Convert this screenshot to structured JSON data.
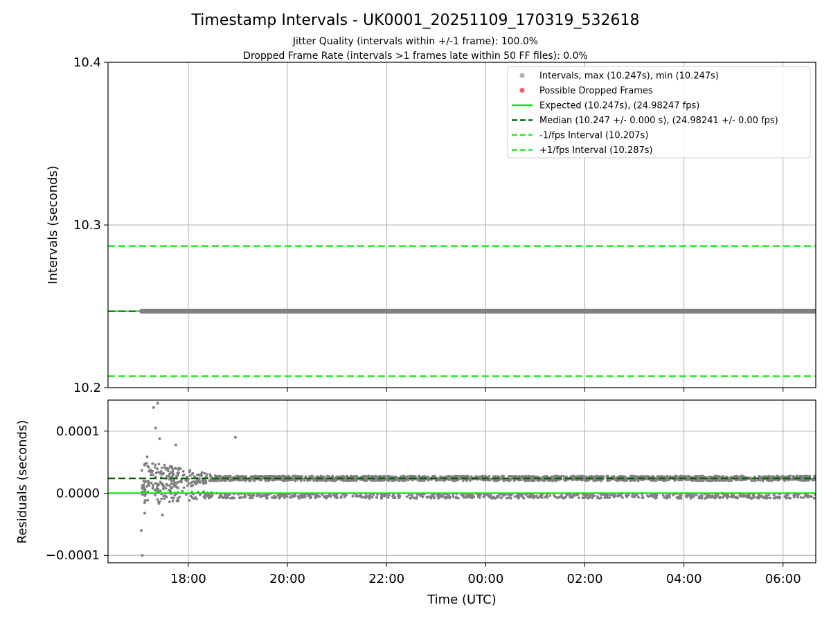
{
  "chart_data": {
    "type": "scatter",
    "title": "Timestamp Intervals - UK0001_20251109_170319_532618",
    "subtitle_1": "Jitter Quality (intervals within +/-1 frame): 100.0%",
    "subtitle_2": "Dropped Frame Rate (intervals >1 frames late within 50 FF files): 0.0%",
    "xlabel": "Time (UTC)",
    "x_tick_labels": [
      "18:00",
      "20:00",
      "22:00",
      "00:00",
      "02:00",
      "04:00",
      "06:00"
    ],
    "x_tick_hours": [
      18,
      20,
      22,
      24,
      26,
      28,
      30
    ],
    "xlim_hours": [
      16.38,
      30.66
    ],
    "data_start_hour": 17.06,
    "colors": {
      "points": "#808080",
      "dropped": "#f0636b",
      "expected": "#00ee00",
      "median": "#006400",
      "limits": "#22ee22",
      "grid": "#b0b0b0"
    },
    "top_plot": {
      "ylabel": "Intervals (seconds)",
      "ylim": [
        10.2,
        10.4
      ],
      "y_ticks": [
        "10.2",
        "10.3",
        "10.4"
      ],
      "y_tick_values": [
        10.2,
        10.3,
        10.4
      ],
      "expected": 10.247,
      "median": 10.247,
      "minus_interval": 10.207,
      "plus_interval": 10.287,
      "legend": [
        {
          "marker": "dot-grey",
          "label": "Intervals, max (10.247s), min (10.247s)"
        },
        {
          "marker": "dot-red",
          "label": "Possible Dropped Frames"
        },
        {
          "marker": "line-solid-green",
          "label": "Expected (10.247s), (24.98247 fps)"
        },
        {
          "marker": "line-dash-darkgreen",
          "label": "Median (10.247 +/- 0.000 s), (24.98241 +/- 0.00 fps)"
        },
        {
          "marker": "line-dash-green",
          "label": "-1/fps Interval (10.207s)"
        },
        {
          "marker": "line-dash-green",
          "label": "+1/fps Interval (10.287s)"
        }
      ]
    },
    "bottom_plot": {
      "ylabel": "Residuals (seconds)",
      "ylim": [
        -0.000112,
        0.00015
      ],
      "y_ticks": [
        "0.0001",
        "0.0000",
        "−0.0001"
      ],
      "y_tick_values": [
        0.0001,
        0.0,
        -0.0001
      ],
      "expected_residual": 0.0,
      "median_residual": 2.4e-05,
      "scatter_model": {
        "upper_band_level": 2.4e-05,
        "lower_band_level": -6e-06,
        "early_spread_hours": [
          17.06,
          18.6
        ],
        "max_residual": 0.000145,
        "min_residual": -0.0001
      }
    }
  }
}
